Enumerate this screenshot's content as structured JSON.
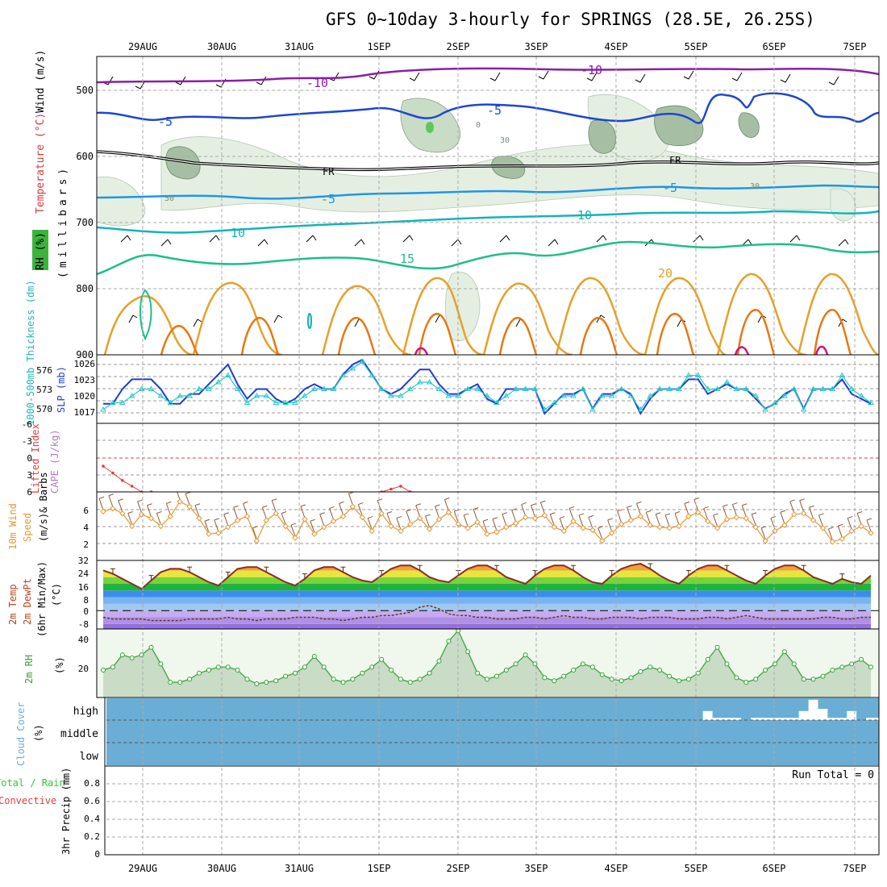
{
  "title": "GFS 0~10day 3-hourly for SPRINGS (28.5E, 26.25S)",
  "date_labels": [
    "29AUG",
    "30AUG",
    "31AUG",
    "1SEP",
    "2SEP",
    "3SEP",
    "4SEP",
    "5SEP",
    "6SEP",
    "7SEP"
  ],
  "colors": {
    "temp_minus10": "#8a1ea8",
    "temp_minus5": "#1e46d2",
    "temp_5": "#1e96e6",
    "temp_10": "#14b4b4",
    "temp_15": "#1ebe8c",
    "temp_20": "#e6a028",
    "temp_25": "#e67814",
    "temp_30": "#d21482",
    "freezing": "#000000",
    "rh_fill": "#b4d2b4",
    "slp": "#1e3cd2",
    "thickness": "#28c8c8",
    "lifted_index": "#e63c3c",
    "cape": "#b478c8",
    "wind10m": "#e69632",
    "rh2m": "#32a032",
    "cloud_bg": "#6aaed6",
    "precip_total": "#32c832",
    "precip_conv": "#e63c3c"
  },
  "panels": {
    "upper": {
      "ylabels": [
        "Wind (m/s)",
        "Temperature (°C)",
        "RH (%)",
        "(millibars)"
      ],
      "ticks": [
        "500",
        "600",
        "700",
        "800",
        "900"
      ],
      "contour_labels": [
        "-10",
        "-10",
        "-5",
        "-5",
        "FR",
        "FR",
        "-5",
        "-5",
        "10",
        "10",
        "15",
        "20",
        "50",
        "30",
        "30",
        "0"
      ]
    },
    "slp": {
      "ylabel_thickness": "1000-500mb Thickness (dm)",
      "ylabel_slp": "SLP (mb)",
      "thickness_ticks": [
        "576",
        "573",
        "570"
      ],
      "slp_ticks": [
        "1026",
        "1023",
        "1020",
        "1017"
      ]
    },
    "li": {
      "ylabel_li": "Lifted Index",
      "ylabel_cape": "CAPE (J/kg)",
      "ticks": [
        "-6",
        "-3",
        "0",
        "3",
        "6"
      ]
    },
    "wind": {
      "ylabel1": "10m Wind",
      "ylabel2": "Speed",
      "ylabel3": "(m/s)",
      "ylabel4": "& Barbs",
      "ticks": [
        "6",
        "4",
        "2",
        "32"
      ]
    },
    "temp": {
      "ylabel1": "2m Temp",
      "ylabel2": "2m DewPt",
      "ylabel3": "(6hr Min/Max)",
      "ylabel4": "(°C)",
      "ticks": [
        "24",
        "16",
        "8",
        "0",
        "-8"
      ]
    },
    "rh": {
      "ylabel": "2m RH",
      "unit": "(%)",
      "ticks": [
        "40",
        "20"
      ]
    },
    "cloud": {
      "ylabel": "Cloud Cover",
      "unit": "(%)",
      "ticks": [
        "high",
        "middle",
        "low"
      ]
    },
    "precip": {
      "ylabel_total": "Total / Rain",
      "ylabel_conv": "Convective",
      "ylabel_main": "3hr Precip (mm)",
      "ticks": [
        "0.8",
        "0.6",
        "0.4",
        "0.2",
        "0"
      ],
      "run_total": "Run Total = 0"
    }
  },
  "chart_data": [
    {
      "type": "line",
      "name": "slp",
      "ylim": [
        1014,
        1028
      ],
      "values": [
        1018,
        1018,
        1021,
        1023,
        1023,
        1023,
        1021,
        1018,
        1018,
        1020,
        1020,
        1022,
        1024,
        1026,
        1022,
        1019,
        1021,
        1021,
        1019,
        1018,
        1019,
        1021,
        1022,
        1021,
        1021,
        1024,
        1026,
        1027,
        1024,
        1021,
        1020,
        1021,
        1023,
        1025,
        1025,
        1022,
        1020,
        1020,
        1021,
        1022,
        1019,
        1018,
        1021,
        1021,
        1021,
        1021,
        1016,
        1018,
        1020,
        1020,
        1021,
        1017,
        1020,
        1020,
        1021,
        1020,
        1016,
        1019,
        1021,
        1021,
        1021,
        1023,
        1023,
        1020,
        1021,
        1022,
        1021,
        1021,
        1019,
        1017,
        1018,
        1020,
        1021,
        1017,
        1021,
        1021,
        1021,
        1023,
        1020,
        1019,
        1018
      ]
    },
    {
      "type": "line",
      "name": "thickness",
      "ylim": [
        568,
        578
      ],
      "values": [
        570,
        571,
        571,
        572,
        573,
        573,
        572,
        571,
        572,
        572,
        573,
        573,
        574,
        575,
        573,
        571,
        572,
        572,
        571,
        571,
        571,
        572,
        573,
        573,
        573,
        575,
        576,
        577,
        575,
        573,
        572,
        572,
        573,
        574,
        574,
        573,
        572,
        572,
        573,
        573,
        572,
        571,
        572,
        573,
        573,
        573,
        570,
        571,
        572,
        572,
        573,
        570,
        572,
        572,
        573,
        572,
        570,
        572,
        573,
        573,
        573,
        575,
        575,
        573,
        573,
        574,
        573,
        573,
        572,
        570,
        571,
        572,
        573,
        570,
        573,
        573,
        573,
        575,
        573,
        572,
        571
      ]
    },
    {
      "type": "line",
      "name": "lifted_index",
      "ylim": [
        -6,
        6
      ],
      "x": [
        0,
        1,
        2,
        3,
        4,
        5,
        29,
        30,
        31,
        32
      ],
      "values": [
        1.5,
        2.7,
        4.0,
        5.0,
        6.0,
        6.0,
        6.0,
        5.5,
        5.0,
        6.0
      ]
    },
    {
      "type": "line",
      "name": "wind10m",
      "ylim": [
        0.5,
        7.5
      ],
      "values": [
        5.5,
        5.8,
        5.3,
        4.0,
        5.2,
        4.8,
        4.0,
        5.0,
        6.5,
        6.0,
        4.8,
        3.2,
        3.3,
        3.9,
        4.6,
        5.0,
        2.5,
        4.6,
        5.3,
        4.0,
        2.8,
        4.7,
        3.2,
        3.9,
        4.5,
        5.0,
        6.0,
        4.9,
        3.5,
        5.3,
        4.0,
        3.5,
        4.2,
        4.8,
        3.7,
        4.7,
        5.4,
        4.2,
        3.8,
        4.4,
        3.2,
        3.4,
        3.9,
        4.3,
        4.9,
        4.8,
        5.1,
        3.9,
        3.5,
        4.5,
        3.8,
        3.6,
        2.5,
        3.3,
        4.2,
        4.6,
        5.0,
        4.1,
        3.9,
        3.8,
        4.0,
        5.0,
        5.4,
        4.5,
        3.8,
        4.7,
        4.9,
        4.8,
        3.9,
        2.5,
        3.5,
        4.1,
        5.2,
        5.3,
        4.6,
        3.8,
        2.4,
        2.7,
        3.5,
        4.0,
        3.3
      ]
    },
    {
      "type": "area",
      "name": "temp2m",
      "ylim": [
        -11,
        30
      ],
      "values": [
        24,
        22,
        19,
        16,
        13,
        18,
        23,
        25,
        25,
        23,
        20,
        17,
        15,
        20,
        25,
        26,
        26,
        23,
        20,
        17,
        15,
        19,
        24,
        26,
        26,
        23,
        20,
        18,
        17,
        21,
        25,
        27,
        27,
        24,
        20,
        18,
        17,
        21,
        25,
        27,
        27,
        24,
        20,
        18,
        16,
        21,
        25,
        27,
        27,
        24,
        20,
        17,
        16,
        21,
        25,
        27,
        28,
        25,
        21,
        18,
        16,
        21,
        25,
        27,
        27,
        24,
        21,
        18,
        16,
        21,
        25,
        27,
        27,
        24,
        20,
        18,
        16,
        19,
        17,
        16,
        21
      ]
    },
    {
      "type": "line",
      "name": "dewpt2m",
      "ylim": [
        -11,
        30
      ],
      "values": [
        -4,
        -5,
        -5,
        -5,
        -5,
        -6,
        -6,
        -6,
        -6,
        -5,
        -5,
        -5,
        -5,
        -4,
        -5,
        -5,
        -6,
        -5,
        -5,
        -5,
        -4,
        -4,
        -4,
        -5,
        -5,
        -6,
        -5,
        -4,
        -4,
        -3,
        -3,
        -2,
        -1,
        2,
        3,
        1,
        -2,
        -3,
        -3,
        -4,
        -4,
        -5,
        -5,
        -5,
        -4,
        -4,
        -5,
        -4,
        -3,
        -4,
        -4,
        -5,
        -5,
        -4,
        -4,
        -4,
        -5,
        -4,
        -4,
        -4,
        -5,
        -5,
        -5,
        -4,
        -4,
        -5,
        -4,
        -3,
        -4,
        -5,
        -5,
        -5,
        -5,
        -5,
        -5,
        -4,
        -4,
        -5,
        -5,
        -4,
        -4
      ]
    },
    {
      "type": "area",
      "name": "rh2m",
      "ylim": [
        0,
        45
      ],
      "values": [
        18,
        20,
        28,
        26,
        28,
        33,
        22,
        10,
        10,
        12,
        16,
        18,
        20,
        20,
        18,
        12,
        9,
        10,
        11,
        14,
        16,
        20,
        27,
        20,
        12,
        10,
        12,
        16,
        20,
        25,
        18,
        12,
        10,
        12,
        16,
        24,
        37,
        44,
        30,
        16,
        12,
        14,
        18,
        22,
        28,
        22,
        13,
        11,
        14,
        18,
        22,
        20,
        15,
        12,
        11,
        13,
        17,
        20,
        18,
        14,
        11,
        12,
        16,
        25,
        33,
        22,
        13,
        10,
        12,
        18,
        22,
        30,
        22,
        12,
        12,
        14,
        18,
        20,
        22,
        25,
        20
      ]
    },
    {
      "type": "bar",
      "name": "high_cloud",
      "ylim": [
        0,
        100
      ],
      "x": [
        63,
        64,
        65,
        66,
        68,
        69,
        70,
        71,
        72,
        73,
        74,
        75,
        76,
        77,
        78,
        80,
        81,
        82
      ],
      "values": [
        40,
        10,
        10,
        10,
        10,
        10,
        10,
        10,
        10,
        40,
        90,
        50,
        10,
        10,
        40,
        10,
        10,
        10
      ]
    },
    {
      "type": "bar",
      "name": "precip",
      "ylim": [
        0,
        1
      ],
      "values": []
    }
  ]
}
